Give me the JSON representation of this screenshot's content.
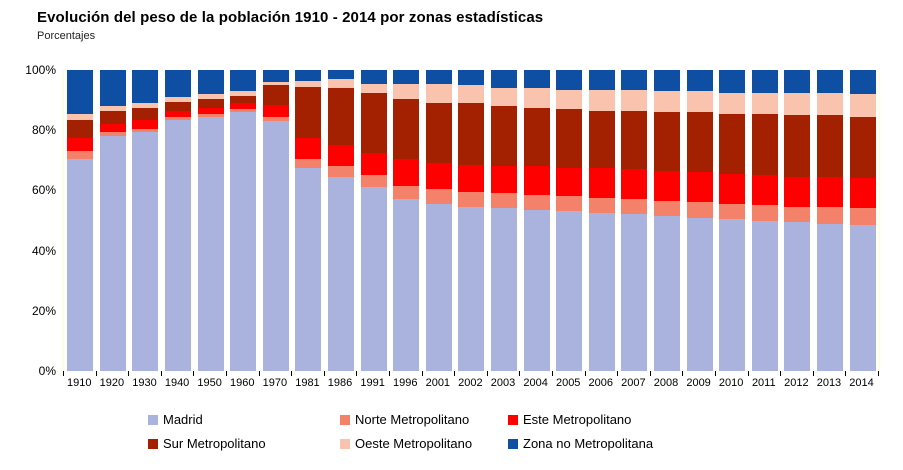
{
  "page": {
    "title": "Evolución del peso de la población 1910 - 2014 por zonas estadísticas",
    "subtitle": "Porcentajes"
  },
  "chart_data": {
    "type": "bar",
    "stacked": true,
    "stack_total": 100,
    "title": "Evolución del peso de la población 1910 - 2014 por zonas estadísticas",
    "subtitle": "Porcentajes",
    "xlabel": "",
    "ylabel": "Porcentajes",
    "ylim": [
      0,
      100
    ],
    "grid": false,
    "legend_position": "bottom",
    "categories": [
      "1910",
      "1920",
      "1930",
      "1940",
      "1950",
      "1960",
      "1970",
      "1981",
      "1986",
      "1991",
      "1996",
      "2001",
      "2002",
      "2003",
      "2004",
      "2005",
      "2006",
      "2007",
      "2008",
      "2009",
      "2010",
      "2011",
      "2012",
      "2013",
      "2014"
    ],
    "series": [
      {
        "name": "Madrid",
        "color": "#a9b3dd",
        "values": [
          70.5,
          78,
          79.5,
          83.5,
          84.5,
          86,
          83,
          67.5,
          64.5,
          61,
          57,
          55.5,
          54.5,
          54,
          53.5,
          53,
          52.5,
          52,
          51.5,
          51,
          50.5,
          50,
          49.5,
          49,
          48.5
        ]
      },
      {
        "name": "Norte Metropolitano",
        "color": "#f4826b",
        "values": [
          2.5,
          1.5,
          1,
          1,
          1,
          1,
          1.5,
          3,
          3.5,
          4,
          4.5,
          5,
          5,
          5,
          5,
          5,
          5,
          5,
          5,
          5,
          5,
          5,
          5,
          5.5,
          5.5
        ]
      },
      {
        "name": "Este Metropolitano",
        "color": "#ff0000",
        "values": [
          4.5,
          2.5,
          3,
          2,
          2,
          2,
          4,
          7,
          7,
          7.5,
          9,
          8.5,
          9,
          9,
          9.5,
          9.5,
          10,
          10,
          10,
          10,
          10,
          10,
          10,
          10,
          10
        ]
      },
      {
        "name": "Sur Metropolitano",
        "color": "#a32100",
        "values": [
          6,
          4.5,
          4,
          3,
          3,
          2.5,
          6.5,
          17,
          19,
          20,
          20,
          20,
          20.5,
          20,
          19.5,
          19.5,
          19,
          19.5,
          19.5,
          20,
          20,
          20.5,
          20.5,
          20.5,
          20.5
        ]
      },
      {
        "name": "Oeste Metropolitano",
        "color": "#f9c3ae",
        "values": [
          2,
          1.5,
          1.5,
          1.5,
          1.5,
          1.5,
          1,
          2,
          3,
          3,
          5,
          6.5,
          6,
          6,
          6.5,
          6.5,
          7,
          7,
          7,
          7,
          7,
          7,
          7.5,
          7.5,
          7.5
        ]
      },
      {
        "name": "Zona no Metropolitana",
        "color": "#0e4ea3",
        "values": [
          14.5,
          12,
          11,
          9,
          8,
          7,
          4,
          3.5,
          3,
          4.5,
          4.5,
          4.5,
          5,
          6,
          6,
          6.5,
          6.5,
          6.5,
          7,
          7,
          7.5,
          7.5,
          7.5,
          7.5,
          8
        ]
      }
    ],
    "stack_order_bottom_to_top": [
      "Madrid",
      "Norte Metropolitano",
      "Este Metropolitano",
      "Sur Metropolitano",
      "Oeste Metropolitano",
      "Zona no Metropolitana"
    ],
    "y_axis": {
      "ticks": [
        "0%",
        "20%",
        "40%",
        "60%",
        "80%",
        "100%"
      ]
    },
    "legend_rows": [
      [
        "Madrid",
        "Norte Metropolitano",
        "Este Metropolitano"
      ],
      [
        "Sur Metropolitano",
        "Oeste Metropolitano",
        "Zona no Metropolitana"
      ]
    ]
  }
}
